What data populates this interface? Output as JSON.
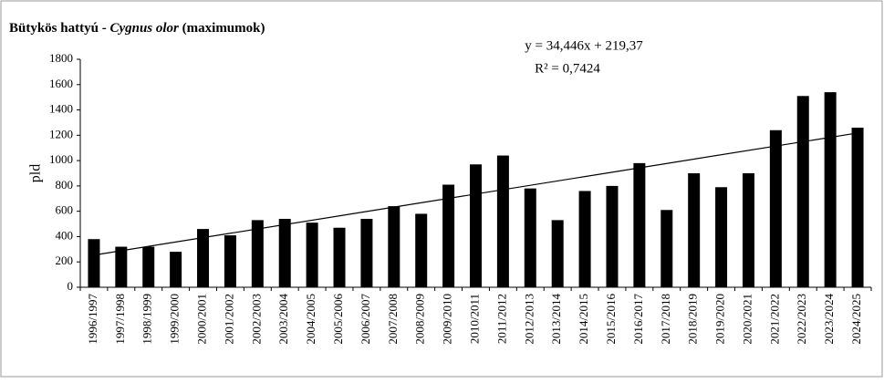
{
  "chart_data": {
    "type": "bar",
    "title": {
      "prefix": "Bütykös hattyú  - ",
      "species": "Cygnus olor",
      "suffix": " (maximumok)"
    },
    "ylabel": "pld",
    "categories": [
      "1996/1997",
      "1997/1998",
      "1998/1999",
      "1999/2000",
      "2000/2001",
      "2001/2002",
      "2002/2003",
      "2003/2004",
      "2004/2005",
      "2005/2006",
      "2006/2007",
      "2007/2008",
      "2008/2009",
      "2009/2010",
      "2010/2011",
      "2011/2012",
      "2012/2013",
      "2013/2014",
      "2014/2015",
      "2015/2016",
      "2016/2017",
      "2017/2018",
      "2018/2019",
      "2019/2020",
      "2020/2021",
      "2021/2022",
      "2022/2023",
      "2023/2024",
      "2024/2025"
    ],
    "values": [
      380,
      320,
      320,
      280,
      460,
      410,
      530,
      540,
      510,
      470,
      540,
      640,
      580,
      810,
      970,
      1040,
      780,
      530,
      760,
      800,
      980,
      610,
      900,
      790,
      900,
      1240,
      1510,
      1540,
      1260
    ],
    "color": "#000000",
    "ylim": [
      0,
      1800
    ],
    "yticks": [
      0,
      200,
      400,
      600,
      800,
      1000,
      1200,
      1400,
      1600,
      1800
    ],
    "grid": false,
    "trendline": {
      "equation": "y = 34,446x  + 219,37",
      "r2": "R² = 0,7424",
      "slope": 34.446,
      "intercept": 219.37
    }
  }
}
